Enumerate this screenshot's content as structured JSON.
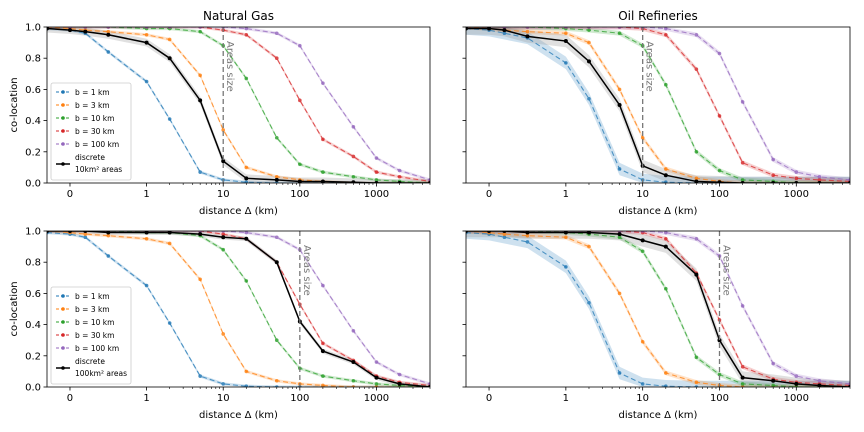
{
  "chart_data": [
    {
      "type": "line",
      "title": "Natural Gas",
      "xlabel": "distance Δ (km)",
      "ylabel": "co-location",
      "xscale": "symlog",
      "xlim": [
        -0.3,
        5000
      ],
      "ylim": [
        0,
        1
      ],
      "xticks": [
        {
          "value": 0,
          "label": "0"
        },
        {
          "value": 1,
          "label": "1"
        },
        {
          "value": 10,
          "label": "10"
        },
        {
          "value": 100,
          "label": "100"
        },
        {
          "value": 1000,
          "label": "1000"
        }
      ],
      "yticks": [
        {
          "value": 0,
          "label": "0.0"
        },
        {
          "value": 0.2,
          "label": "0.2"
        },
        {
          "value": 0.4,
          "label": "0.4"
        },
        {
          "value": 0.6,
          "label": "0.6"
        },
        {
          "value": 0.8,
          "label": "0.8"
        },
        {
          "value": 1.0,
          "label": "1.0"
        }
      ],
      "vline": {
        "x": 10,
        "label": "Areas size"
      },
      "legend": {
        "position": "lower-left",
        "entries": [
          {
            "label": "b = 1 km"
          },
          {
            "label": "b = 3 km"
          },
          {
            "label": "b = 10 km"
          },
          {
            "label": "b = 30 km"
          },
          {
            "label": "b = 100 km"
          },
          {
            "label": "discrete",
            "label2": "10km² areas"
          }
        ]
      },
      "x": [
        -0.3,
        0,
        0.2,
        0.5,
        1,
        2,
        5,
        10,
        20,
        50,
        100,
        200,
        500,
        1000,
        2000,
        5000
      ],
      "series": [
        {
          "name": "b = 1 km",
          "color": "#1f77b4",
          "dashed": true,
          "band": 0.01,
          "values": [
            0.99,
            0.98,
            0.96,
            0.84,
            0.65,
            0.41,
            0.07,
            0.02,
            0.005,
            0.0,
            0.0,
            0.0,
            0.0,
            0.0,
            0.0,
            0.0
          ]
        },
        {
          "name": "b = 3 km",
          "color": "#ff7f0e",
          "dashed": true,
          "band": 0.01,
          "values": [
            1.0,
            0.99,
            0.98,
            0.97,
            0.95,
            0.92,
            0.69,
            0.34,
            0.1,
            0.04,
            0.02,
            0.01,
            0.0,
            0.0,
            0.0,
            0.0
          ]
        },
        {
          "name": "b = 10 km",
          "color": "#2ca02c",
          "dashed": true,
          "band": 0.01,
          "values": [
            1.0,
            1.0,
            1.0,
            1.0,
            0.99,
            0.99,
            0.97,
            0.88,
            0.67,
            0.29,
            0.12,
            0.07,
            0.04,
            0.02,
            0.01,
            0.0
          ]
        },
        {
          "name": "b = 30 km",
          "color": "#d62728",
          "dashed": true,
          "band": 0.01,
          "values": [
            1.0,
            1.0,
            1.0,
            1.0,
            1.0,
            1.0,
            1.0,
            0.98,
            0.95,
            0.8,
            0.53,
            0.28,
            0.17,
            0.07,
            0.04,
            0.01
          ]
        },
        {
          "name": "b = 100 km",
          "color": "#9467bd",
          "dashed": true,
          "band": 0.01,
          "values": [
            1.0,
            1.0,
            1.0,
            1.0,
            1.0,
            1.0,
            1.0,
            1.0,
            0.99,
            0.96,
            0.88,
            0.64,
            0.36,
            0.16,
            0.08,
            0.02
          ]
        },
        {
          "name": "discrete",
          "color": "#000000",
          "dashed": false,
          "band": 0.025,
          "values": [
            0.99,
            0.98,
            0.97,
            0.95,
            0.9,
            0.8,
            0.53,
            0.14,
            0.03,
            0.02,
            0.01,
            0.01,
            0.005,
            0.0,
            0.0,
            0.0
          ]
        }
      ]
    },
    {
      "type": "line",
      "title": "Oil Refineries",
      "xlabel": "distance Δ (km)",
      "ylabel": "",
      "xscale": "symlog",
      "xlim": [
        -0.3,
        5000
      ],
      "ylim": [
        0,
        1
      ],
      "xticks": [
        {
          "value": 0,
          "label": "0"
        },
        {
          "value": 1,
          "label": "1"
        },
        {
          "value": 10,
          "label": "10"
        },
        {
          "value": 100,
          "label": "100"
        },
        {
          "value": 1000,
          "label": "1000"
        }
      ],
      "yticks": [],
      "vline": {
        "x": 10,
        "label": "Areas size"
      },
      "legend": null,
      "x": [
        -0.3,
        0,
        0.2,
        0.5,
        1,
        2,
        5,
        10,
        20,
        50,
        100,
        200,
        500,
        1000,
        2000,
        5000
      ],
      "series": [
        {
          "name": "b = 1 km",
          "color": "#1f77b4",
          "dashed": true,
          "band": 0.04,
          "values": [
            0.99,
            0.98,
            0.96,
            0.93,
            0.77,
            0.54,
            0.09,
            0.02,
            0.005,
            0.0,
            0.0,
            0.0,
            0.0,
            0.0,
            0.0,
            0.0
          ]
        },
        {
          "name": "b = 3 km",
          "color": "#ff7f0e",
          "dashed": true,
          "band": 0.015,
          "values": [
            1.0,
            0.99,
            0.98,
            0.97,
            0.96,
            0.9,
            0.6,
            0.29,
            0.09,
            0.03,
            0.01,
            0.0,
            0.0,
            0.0,
            0.0,
            0.0
          ]
        },
        {
          "name": "b = 10 km",
          "color": "#2ca02c",
          "dashed": true,
          "band": 0.015,
          "values": [
            1.0,
            1.0,
            1.0,
            1.0,
            0.99,
            0.98,
            0.96,
            0.88,
            0.63,
            0.2,
            0.08,
            0.02,
            0.01,
            0.0,
            0.0,
            0.0
          ]
        },
        {
          "name": "b = 30 km",
          "color": "#d62728",
          "dashed": true,
          "band": 0.015,
          "values": [
            1.0,
            1.0,
            1.0,
            1.0,
            1.0,
            1.0,
            1.0,
            0.99,
            0.95,
            0.73,
            0.43,
            0.13,
            0.05,
            0.03,
            0.02,
            0.01
          ]
        },
        {
          "name": "b = 100 km",
          "color": "#9467bd",
          "dashed": true,
          "band": 0.015,
          "values": [
            1.0,
            1.0,
            1.0,
            1.0,
            1.0,
            1.0,
            1.0,
            1.0,
            0.99,
            0.95,
            0.83,
            0.52,
            0.15,
            0.07,
            0.04,
            0.02
          ]
        },
        {
          "name": "discrete",
          "color": "#000000",
          "dashed": false,
          "band": 0.04,
          "values": [
            0.99,
            0.99,
            0.98,
            0.94,
            0.91,
            0.78,
            0.5,
            0.11,
            0.05,
            0.01,
            0.005,
            0.0,
            0.0,
            0.0,
            0.0,
            0.0
          ]
        }
      ]
    },
    {
      "type": "line",
      "title": "",
      "xlabel": "distance Δ (km)",
      "ylabel": "co-location",
      "xscale": "symlog",
      "xlim": [
        -0.3,
        5000
      ],
      "ylim": [
        0,
        1
      ],
      "xticks": [
        {
          "value": 0,
          "label": "0"
        },
        {
          "value": 1,
          "label": "1"
        },
        {
          "value": 10,
          "label": "10"
        },
        {
          "value": 100,
          "label": "100"
        },
        {
          "value": 1000,
          "label": "1000"
        }
      ],
      "yticks": [
        {
          "value": 0,
          "label": "0.0"
        },
        {
          "value": 0.2,
          "label": "0.2"
        },
        {
          "value": 0.4,
          "label": "0.4"
        },
        {
          "value": 0.6,
          "label": "0.6"
        },
        {
          "value": 0.8,
          "label": "0.8"
        },
        {
          "value": 1.0,
          "label": "1.0"
        }
      ],
      "vline": {
        "x": 100,
        "label": "Areas size"
      },
      "legend": {
        "position": "lower-left",
        "entries": [
          {
            "label": "b = 1 km"
          },
          {
            "label": "b = 3 km"
          },
          {
            "label": "b = 10 km"
          },
          {
            "label": "b = 30 km"
          },
          {
            "label": "b = 100 km"
          },
          {
            "label": "discrete",
            "label2": "100km² areas"
          }
        ]
      },
      "x": [
        -0.3,
        0,
        0.2,
        0.5,
        1,
        2,
        5,
        10,
        20,
        50,
        100,
        200,
        500,
        1000,
        2000,
        5000
      ],
      "series": [
        {
          "name": "b = 1 km",
          "color": "#1f77b4",
          "dashed": true,
          "band": 0.01,
          "values": [
            0.99,
            0.98,
            0.96,
            0.84,
            0.65,
            0.41,
            0.07,
            0.02,
            0.005,
            0.0,
            0.0,
            0.0,
            0.0,
            0.0,
            0.0,
            0.0
          ]
        },
        {
          "name": "b = 3 km",
          "color": "#ff7f0e",
          "dashed": true,
          "band": 0.01,
          "values": [
            1.0,
            0.99,
            0.98,
            0.97,
            0.95,
            0.92,
            0.69,
            0.34,
            0.1,
            0.04,
            0.02,
            0.01,
            0.0,
            0.0,
            0.0,
            0.0
          ]
        },
        {
          "name": "b = 10 km",
          "color": "#2ca02c",
          "dashed": true,
          "band": 0.01,
          "values": [
            1.0,
            1.0,
            1.0,
            1.0,
            0.99,
            0.99,
            0.97,
            0.88,
            0.68,
            0.3,
            0.12,
            0.07,
            0.04,
            0.02,
            0.01,
            0.0
          ]
        },
        {
          "name": "b = 30 km",
          "color": "#d62728",
          "dashed": true,
          "band": 0.01,
          "values": [
            1.0,
            1.0,
            1.0,
            1.0,
            1.0,
            1.0,
            1.0,
            0.98,
            0.95,
            0.8,
            0.53,
            0.28,
            0.17,
            0.07,
            0.03,
            0.01
          ]
        },
        {
          "name": "b = 100 km",
          "color": "#9467bd",
          "dashed": true,
          "band": 0.01,
          "values": [
            1.0,
            1.0,
            1.0,
            1.0,
            1.0,
            1.0,
            1.0,
            1.0,
            0.99,
            0.96,
            0.88,
            0.65,
            0.36,
            0.16,
            0.08,
            0.02
          ]
        },
        {
          "name": "discrete",
          "color": "#000000",
          "dashed": false,
          "band": 0.015,
          "values": [
            1.0,
            1.0,
            1.0,
            0.99,
            0.99,
            0.99,
            0.98,
            0.96,
            0.95,
            0.8,
            0.42,
            0.23,
            0.16,
            0.06,
            0.02,
            0.0
          ]
        }
      ]
    },
    {
      "type": "line",
      "title": "",
      "xlabel": "distance Δ (km)",
      "ylabel": "",
      "xscale": "symlog",
      "xlim": [
        -0.3,
        5000
      ],
      "ylim": [
        0,
        1
      ],
      "xticks": [
        {
          "value": 0,
          "label": "0"
        },
        {
          "value": 1,
          "label": "1"
        },
        {
          "value": 10,
          "label": "10"
        },
        {
          "value": 100,
          "label": "100"
        },
        {
          "value": 1000,
          "label": "1000"
        }
      ],
      "yticks": [],
      "vline": {
        "x": 100,
        "label": "Areas size"
      },
      "legend": null,
      "x": [
        -0.3,
        0,
        0.2,
        0.5,
        1,
        2,
        5,
        10,
        20,
        50,
        100,
        200,
        500,
        1000,
        2000,
        5000
      ],
      "series": [
        {
          "name": "b = 1 km",
          "color": "#1f77b4",
          "dashed": true,
          "band": 0.04,
          "values": [
            0.99,
            0.98,
            0.96,
            0.93,
            0.77,
            0.54,
            0.09,
            0.02,
            0.005,
            0.0,
            0.0,
            0.0,
            0.0,
            0.0,
            0.0,
            0.0
          ]
        },
        {
          "name": "b = 3 km",
          "color": "#ff7f0e",
          "dashed": true,
          "band": 0.015,
          "values": [
            1.0,
            0.99,
            0.98,
            0.97,
            0.96,
            0.9,
            0.6,
            0.29,
            0.09,
            0.03,
            0.01,
            0.0,
            0.0,
            0.0,
            0.0,
            0.0
          ]
        },
        {
          "name": "b = 10 km",
          "color": "#2ca02c",
          "dashed": true,
          "band": 0.015,
          "values": [
            1.0,
            1.0,
            1.0,
            1.0,
            0.99,
            0.98,
            0.96,
            0.87,
            0.63,
            0.19,
            0.08,
            0.02,
            0.01,
            0.0,
            0.0,
            0.0
          ]
        },
        {
          "name": "b = 30 km",
          "color": "#d62728",
          "dashed": true,
          "band": 0.015,
          "values": [
            1.0,
            1.0,
            1.0,
            1.0,
            1.0,
            1.0,
            1.0,
            0.99,
            0.95,
            0.73,
            0.43,
            0.13,
            0.05,
            0.03,
            0.02,
            0.01
          ]
        },
        {
          "name": "b = 100 km",
          "color": "#9467bd",
          "dashed": true,
          "band": 0.015,
          "values": [
            1.0,
            1.0,
            1.0,
            1.0,
            1.0,
            1.0,
            1.0,
            1.0,
            0.99,
            0.95,
            0.84,
            0.52,
            0.15,
            0.07,
            0.04,
            0.02
          ]
        },
        {
          "name": "discrete",
          "color": "#000000",
          "dashed": false,
          "band": 0.04,
          "values": [
            1.0,
            1.0,
            1.0,
            0.99,
            0.99,
            0.99,
            0.98,
            0.94,
            0.9,
            0.72,
            0.3,
            0.06,
            0.04,
            0.02,
            0.01,
            0.0
          ]
        }
      ]
    }
  ]
}
